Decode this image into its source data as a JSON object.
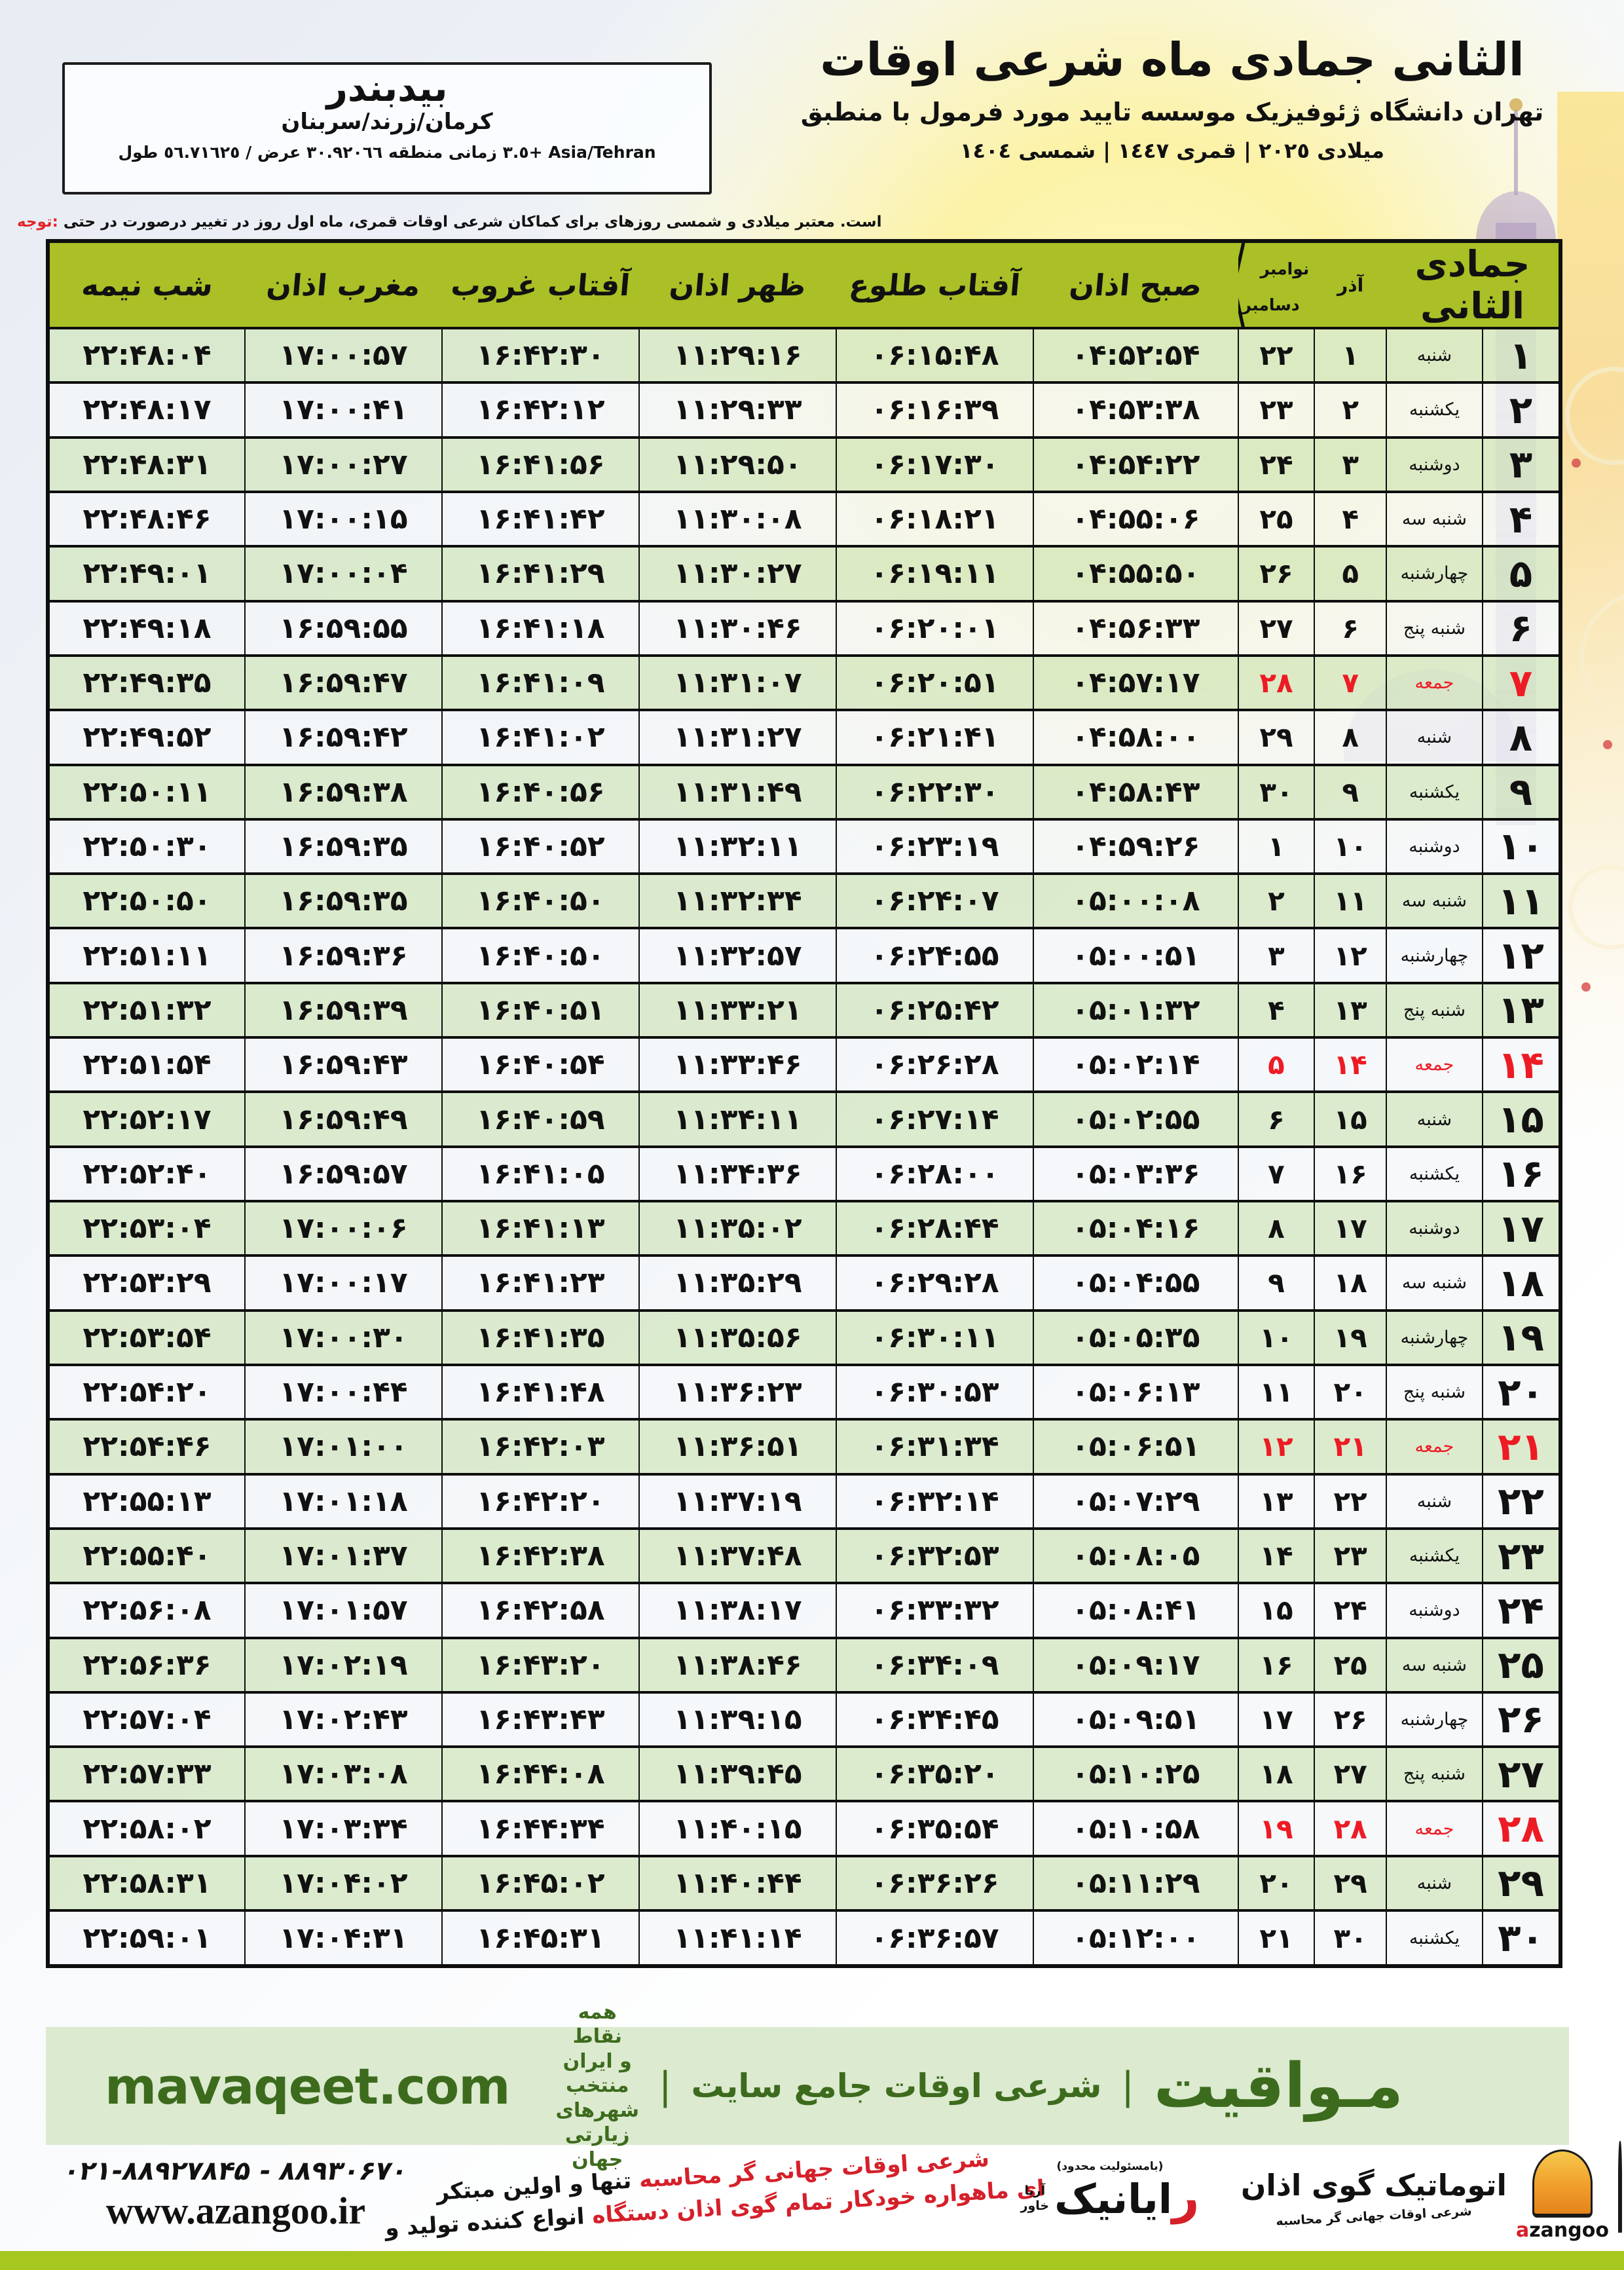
{
  "colors": {
    "header_green": "#abbf26",
    "row_green": "#d6e7c6",
    "row_white": "#f3f6f8",
    "accent_red": "#ed1b24",
    "band_bg": "#dcead0",
    "band_text": "#3d6b1d",
    "olive_bar": "#a6c71e",
    "logo_orange": "#ef9b28",
    "border_black": "#0e0e0e"
  },
  "title_block": {
    "title": "اوقات شرعی ماه جمادی الثانی",
    "subtitle": "منطبق با فرمول مورد تایید موسسه ژئوفیزیک دانشگاه تهران",
    "era_line": "١٤٠٤ شمسی | ١٤٤٧ قمری | ٢٠٢٥ میلادی"
  },
  "location_box": {
    "name": "بیدبندر",
    "region": "سربنان/زرند/کرمان",
    "coords_line": "طول ٥٦.٧١٦٢٥ / عرض ٣٠.٩٢٠٦٦ منطقه زمانی +٣.٥ Asia/Tehran"
  },
  "note": {
    "prefix": "توجه:",
    "body": "حتی در درصورت تغییر در روز اول ماه قمری، اوقات شرعی کماکان برای روزهای شمسی و میلادی معتبر است."
  },
  "table": {
    "month_label": "جمادی الثانی",
    "headers": {
      "azar": "آذر",
      "greg_top": "نوامبر",
      "greg_bottom": "دسامبر",
      "fajr": "اذان صبح",
      "sunrise": "طلوع آفتاب",
      "dhuhr": "اذان ظهر",
      "sunset": "غروب آفتاب",
      "maghrib": "اذان مغرب",
      "midnight": "نیمه شب"
    },
    "rows": [
      {
        "day": "۱",
        "weekday": "شنبه",
        "azar": "۱",
        "greg": "۲۲",
        "fajr": "۰۴:۵۲:۵۴",
        "sunrise": "۰۶:۱۵:۴۸",
        "dhuhr": "۱۱:۲۹:۱۶",
        "sunset": "۱۶:۴۲:۳۰",
        "maghrib": "۱۷:۰۰:۵۷",
        "midnight": "۲۲:۴۸:۰۴",
        "friday": false
      },
      {
        "day": "۲",
        "weekday": "یکشنبه",
        "azar": "۲",
        "greg": "۲۳",
        "fajr": "۰۴:۵۳:۳۸",
        "sunrise": "۰۶:۱۶:۳۹",
        "dhuhr": "۱۱:۲۹:۳۳",
        "sunset": "۱۶:۴۲:۱۲",
        "maghrib": "۱۷:۰۰:۴۱",
        "midnight": "۲۲:۴۸:۱۷",
        "friday": false
      },
      {
        "day": "۳",
        "weekday": "دوشنبه",
        "azar": "۳",
        "greg": "۲۴",
        "fajr": "۰۴:۵۴:۲۲",
        "sunrise": "۰۶:۱۷:۳۰",
        "dhuhr": "۱۱:۲۹:۵۰",
        "sunset": "۱۶:۴۱:۵۶",
        "maghrib": "۱۷:۰۰:۲۷",
        "midnight": "۲۲:۴۸:۳۱",
        "friday": false
      },
      {
        "day": "۴",
        "weekday": "سه شنبه",
        "azar": "۴",
        "greg": "۲۵",
        "fajr": "۰۴:۵۵:۰۶",
        "sunrise": "۰۶:۱۸:۲۱",
        "dhuhr": "۱۱:۳۰:۰۸",
        "sunset": "۱۶:۴۱:۴۲",
        "maghrib": "۱۷:۰۰:۱۵",
        "midnight": "۲۲:۴۸:۴۶",
        "friday": false
      },
      {
        "day": "۵",
        "weekday": "چهارشنبه",
        "azar": "۵",
        "greg": "۲۶",
        "fajr": "۰۴:۵۵:۵۰",
        "sunrise": "۰۶:۱۹:۱۱",
        "dhuhr": "۱۱:۳۰:۲۷",
        "sunset": "۱۶:۴۱:۲۹",
        "maghrib": "۱۷:۰۰:۰۴",
        "midnight": "۲۲:۴۹:۰۱",
        "friday": false
      },
      {
        "day": "۶",
        "weekday": "پنج شنبه",
        "azar": "۶",
        "greg": "۲۷",
        "fajr": "۰۴:۵۶:۳۳",
        "sunrise": "۰۶:۲۰:۰۱",
        "dhuhr": "۱۱:۳۰:۴۶",
        "sunset": "۱۶:۴۱:۱۸",
        "maghrib": "۱۶:۵۹:۵۵",
        "midnight": "۲۲:۴۹:۱۸",
        "friday": false
      },
      {
        "day": "۷",
        "weekday": "جمعه",
        "azar": "۷",
        "greg": "۲۸",
        "fajr": "۰۴:۵۷:۱۷",
        "sunrise": "۰۶:۲۰:۵۱",
        "dhuhr": "۱۱:۳۱:۰۷",
        "sunset": "۱۶:۴۱:۰۹",
        "maghrib": "۱۶:۵۹:۴۷",
        "midnight": "۲۲:۴۹:۳۵",
        "friday": true
      },
      {
        "day": "۸",
        "weekday": "شنبه",
        "azar": "۸",
        "greg": "۲۹",
        "fajr": "۰۴:۵۸:۰۰",
        "sunrise": "۰۶:۲۱:۴۱",
        "dhuhr": "۱۱:۳۱:۲۷",
        "sunset": "۱۶:۴۱:۰۲",
        "maghrib": "۱۶:۵۹:۴۲",
        "midnight": "۲۲:۴۹:۵۲",
        "friday": false
      },
      {
        "day": "۹",
        "weekday": "یکشنبه",
        "azar": "۹",
        "greg": "۳۰",
        "fajr": "۰۴:۵۸:۴۳",
        "sunrise": "۰۶:۲۲:۳۰",
        "dhuhr": "۱۱:۳۱:۴۹",
        "sunset": "۱۶:۴۰:۵۶",
        "maghrib": "۱۶:۵۹:۳۸",
        "midnight": "۲۲:۵۰:۱۱",
        "friday": false
      },
      {
        "day": "۱۰",
        "weekday": "دوشنبه",
        "azar": "۱۰",
        "greg": "۱",
        "fajr": "۰۴:۵۹:۲۶",
        "sunrise": "۰۶:۲۳:۱۹",
        "dhuhr": "۱۱:۳۲:۱۱",
        "sunset": "۱۶:۴۰:۵۲",
        "maghrib": "۱۶:۵۹:۳۵",
        "midnight": "۲۲:۵۰:۳۰",
        "friday": false
      },
      {
        "day": "۱۱",
        "weekday": "سه شنبه",
        "azar": "۱۱",
        "greg": "۲",
        "fajr": "۰۵:۰۰:۰۸",
        "sunrise": "۰۶:۲۴:۰۷",
        "dhuhr": "۱۱:۳۲:۳۴",
        "sunset": "۱۶:۴۰:۵۰",
        "maghrib": "۱۶:۵۹:۳۵",
        "midnight": "۲۲:۵۰:۵۰",
        "friday": false
      },
      {
        "day": "۱۲",
        "weekday": "چهارشنبه",
        "azar": "۱۲",
        "greg": "۳",
        "fajr": "۰۵:۰۰:۵۱",
        "sunrise": "۰۶:۲۴:۵۵",
        "dhuhr": "۱۱:۳۲:۵۷",
        "sunset": "۱۶:۴۰:۵۰",
        "maghrib": "۱۶:۵۹:۳۶",
        "midnight": "۲۲:۵۱:۱۱",
        "friday": false
      },
      {
        "day": "۱۳",
        "weekday": "پنج شنبه",
        "azar": "۱۳",
        "greg": "۴",
        "fajr": "۰۵:۰۱:۳۲",
        "sunrise": "۰۶:۲۵:۴۲",
        "dhuhr": "۱۱:۳۳:۲۱",
        "sunset": "۱۶:۴۰:۵۱",
        "maghrib": "۱۶:۵۹:۳۹",
        "midnight": "۲۲:۵۱:۳۲",
        "friday": false
      },
      {
        "day": "۱۴",
        "weekday": "جمعه",
        "azar": "۱۴",
        "greg": "۵",
        "fajr": "۰۵:۰۲:۱۴",
        "sunrise": "۰۶:۲۶:۲۸",
        "dhuhr": "۱۱:۳۳:۴۶",
        "sunset": "۱۶:۴۰:۵۴",
        "maghrib": "۱۶:۵۹:۴۳",
        "midnight": "۲۲:۵۱:۵۴",
        "friday": true
      },
      {
        "day": "۱۵",
        "weekday": "شنبه",
        "azar": "۱۵",
        "greg": "۶",
        "fajr": "۰۵:۰۲:۵۵",
        "sunrise": "۰۶:۲۷:۱۴",
        "dhuhr": "۱۱:۳۴:۱۱",
        "sunset": "۱۶:۴۰:۵۹",
        "maghrib": "۱۶:۵۹:۴۹",
        "midnight": "۲۲:۵۲:۱۷",
        "friday": false
      },
      {
        "day": "۱۶",
        "weekday": "یکشنبه",
        "azar": "۱۶",
        "greg": "۷",
        "fajr": "۰۵:۰۳:۳۶",
        "sunrise": "۰۶:۲۸:۰۰",
        "dhuhr": "۱۱:۳۴:۳۶",
        "sunset": "۱۶:۴۱:۰۵",
        "maghrib": "۱۶:۵۹:۵۷",
        "midnight": "۲۲:۵۲:۴۰",
        "friday": false
      },
      {
        "day": "۱۷",
        "weekday": "دوشنبه",
        "azar": "۱۷",
        "greg": "۸",
        "fajr": "۰۵:۰۴:۱۶",
        "sunrise": "۰۶:۲۸:۴۴",
        "dhuhr": "۱۱:۳۵:۰۲",
        "sunset": "۱۶:۴۱:۱۳",
        "maghrib": "۱۷:۰۰:۰۶",
        "midnight": "۲۲:۵۳:۰۴",
        "friday": false
      },
      {
        "day": "۱۸",
        "weekday": "سه شنبه",
        "azar": "۱۸",
        "greg": "۹",
        "fajr": "۰۵:۰۴:۵۵",
        "sunrise": "۰۶:۲۹:۲۸",
        "dhuhr": "۱۱:۳۵:۲۹",
        "sunset": "۱۶:۴۱:۲۳",
        "maghrib": "۱۷:۰۰:۱۷",
        "midnight": "۲۲:۵۳:۲۹",
        "friday": false
      },
      {
        "day": "۱۹",
        "weekday": "چهارشنبه",
        "azar": "۱۹",
        "greg": "۱۰",
        "fajr": "۰۵:۰۵:۳۵",
        "sunrise": "۰۶:۳۰:۱۱",
        "dhuhr": "۱۱:۳۵:۵۶",
        "sunset": "۱۶:۴۱:۳۵",
        "maghrib": "۱۷:۰۰:۳۰",
        "midnight": "۲۲:۵۳:۵۴",
        "friday": false
      },
      {
        "day": "۲۰",
        "weekday": "پنج شنبه",
        "azar": "۲۰",
        "greg": "۱۱",
        "fajr": "۰۵:۰۶:۱۳",
        "sunrise": "۰۶:۳۰:۵۳",
        "dhuhr": "۱۱:۳۶:۲۳",
        "sunset": "۱۶:۴۱:۴۸",
        "maghrib": "۱۷:۰۰:۴۴",
        "midnight": "۲۲:۵۴:۲۰",
        "friday": false
      },
      {
        "day": "۲۱",
        "weekday": "جمعه",
        "azar": "۲۱",
        "greg": "۱۲",
        "fajr": "۰۵:۰۶:۵۱",
        "sunrise": "۰۶:۳۱:۳۴",
        "dhuhr": "۱۱:۳۶:۵۱",
        "sunset": "۱۶:۴۲:۰۳",
        "maghrib": "۱۷:۰۱:۰۰",
        "midnight": "۲۲:۵۴:۴۶",
        "friday": true
      },
      {
        "day": "۲۲",
        "weekday": "شنبه",
        "azar": "۲۲",
        "greg": "۱۳",
        "fajr": "۰۵:۰۷:۲۹",
        "sunrise": "۰۶:۳۲:۱۴",
        "dhuhr": "۱۱:۳۷:۱۹",
        "sunset": "۱۶:۴۲:۲۰",
        "maghrib": "۱۷:۰۱:۱۸",
        "midnight": "۲۲:۵۵:۱۳",
        "friday": false
      },
      {
        "day": "۲۳",
        "weekday": "یکشنبه",
        "azar": "۲۳",
        "greg": "۱۴",
        "fajr": "۰۵:۰۸:۰۵",
        "sunrise": "۰۶:۳۲:۵۳",
        "dhuhr": "۱۱:۳۷:۴۸",
        "sunset": "۱۶:۴۲:۳۸",
        "maghrib": "۱۷:۰۱:۳۷",
        "midnight": "۲۲:۵۵:۴۰",
        "friday": false
      },
      {
        "day": "۲۴",
        "weekday": "دوشنبه",
        "azar": "۲۴",
        "greg": "۱۵",
        "fajr": "۰۵:۰۸:۴۱",
        "sunrise": "۰۶:۳۳:۳۲",
        "dhuhr": "۱۱:۳۸:۱۷",
        "sunset": "۱۶:۴۲:۵۸",
        "maghrib": "۱۷:۰۱:۵۷",
        "midnight": "۲۲:۵۶:۰۸",
        "friday": false
      },
      {
        "day": "۲۵",
        "weekday": "سه شنبه",
        "azar": "۲۵",
        "greg": "۱۶",
        "fajr": "۰۵:۰۹:۱۷",
        "sunrise": "۰۶:۳۴:۰۹",
        "dhuhr": "۱۱:۳۸:۴۶",
        "sunset": "۱۶:۴۳:۲۰",
        "maghrib": "۱۷:۰۲:۱۹",
        "midnight": "۲۲:۵۶:۳۶",
        "friday": false
      },
      {
        "day": "۲۶",
        "weekday": "چهارشنبه",
        "azar": "۲۶",
        "greg": "۱۷",
        "fajr": "۰۵:۰۹:۵۱",
        "sunrise": "۰۶:۳۴:۴۵",
        "dhuhr": "۱۱:۳۹:۱۵",
        "sunset": "۱۶:۴۳:۴۳",
        "maghrib": "۱۷:۰۲:۴۳",
        "midnight": "۲۲:۵۷:۰۴",
        "friday": false
      },
      {
        "day": "۲۷",
        "weekday": "پنج شنبه",
        "azar": "۲۷",
        "greg": "۱۸",
        "fajr": "۰۵:۱۰:۲۵",
        "sunrise": "۰۶:۳۵:۲۰",
        "dhuhr": "۱۱:۳۹:۴۵",
        "sunset": "۱۶:۴۴:۰۸",
        "maghrib": "۱۷:۰۳:۰۸",
        "midnight": "۲۲:۵۷:۳۳",
        "friday": false
      },
      {
        "day": "۲۸",
        "weekday": "جمعه",
        "azar": "۲۸",
        "greg": "۱۹",
        "fajr": "۰۵:۱۰:۵۸",
        "sunrise": "۰۶:۳۵:۵۴",
        "dhuhr": "۱۱:۴۰:۱۵",
        "sunset": "۱۶:۴۴:۳۴",
        "maghrib": "۱۷:۰۳:۳۴",
        "midnight": "۲۲:۵۸:۰۲",
        "friday": true
      },
      {
        "day": "۲۹",
        "weekday": "شنبه",
        "azar": "۲۹",
        "greg": "۲۰",
        "fajr": "۰۵:۱۱:۲۹",
        "sunrise": "۰۶:۳۶:۲۶",
        "dhuhr": "۱۱:۴۰:۴۴",
        "sunset": "۱۶:۴۵:۰۲",
        "maghrib": "۱۷:۰۴:۰۲",
        "midnight": "۲۲:۵۸:۳۱",
        "friday": false
      },
      {
        "day": "۳۰",
        "weekday": "یکشنبه",
        "azar": "۳۰",
        "greg": "۲۱",
        "fajr": "۰۵:۱۲:۰۰",
        "sunrise": "۰۶:۳۶:۵۷",
        "dhuhr": "۱۱:۴۱:۱۴",
        "sunset": "۱۶:۴۵:۳۱",
        "maghrib": "۱۷:۰۴:۳۱",
        "midnight": "۲۲:۵۹:۰۱",
        "friday": false
      }
    ]
  },
  "footer_band": {
    "brand": "مـواقیت",
    "pipe": "|",
    "site_desc": "سایت جامع اوقات شرعی",
    "coverage": "همه نقاط ایران و منتخب شهرهای زیارتی جهان",
    "url": "mavaqeet.com"
  },
  "bottom_bar": {
    "phone": "۰۲۱-۸۸۹۲۷۸۴۵ - ۸۸۹۳۰۶۷۰",
    "website": "www.azangoo.ir",
    "promo_line1_black": "مبتکر اولین و تنها",
    "promo_line1_red": "محاسبه گر جهانی اوقات شرعی",
    "promo_line2_black": "و تولید کننده انواع",
    "promo_line2_red": "دستگاه اذان گوی تمام خودکار ماهواره ای",
    "rayanik_top": "(بامسئولیت محدود)",
    "rayanik_initial": "ر",
    "rayanik_rest": "ایانیک",
    "rayanik_sub1": "آریا",
    "rayanik_sub2": "خاور",
    "azangoo_fa": "اذان گوی اتوماتیک",
    "azangoo_en_a": "a",
    "azangoo_en_rest": "zangoo",
    "azangoo_tagline": "محاسبه گر جهانی اوقات شرعی"
  }
}
